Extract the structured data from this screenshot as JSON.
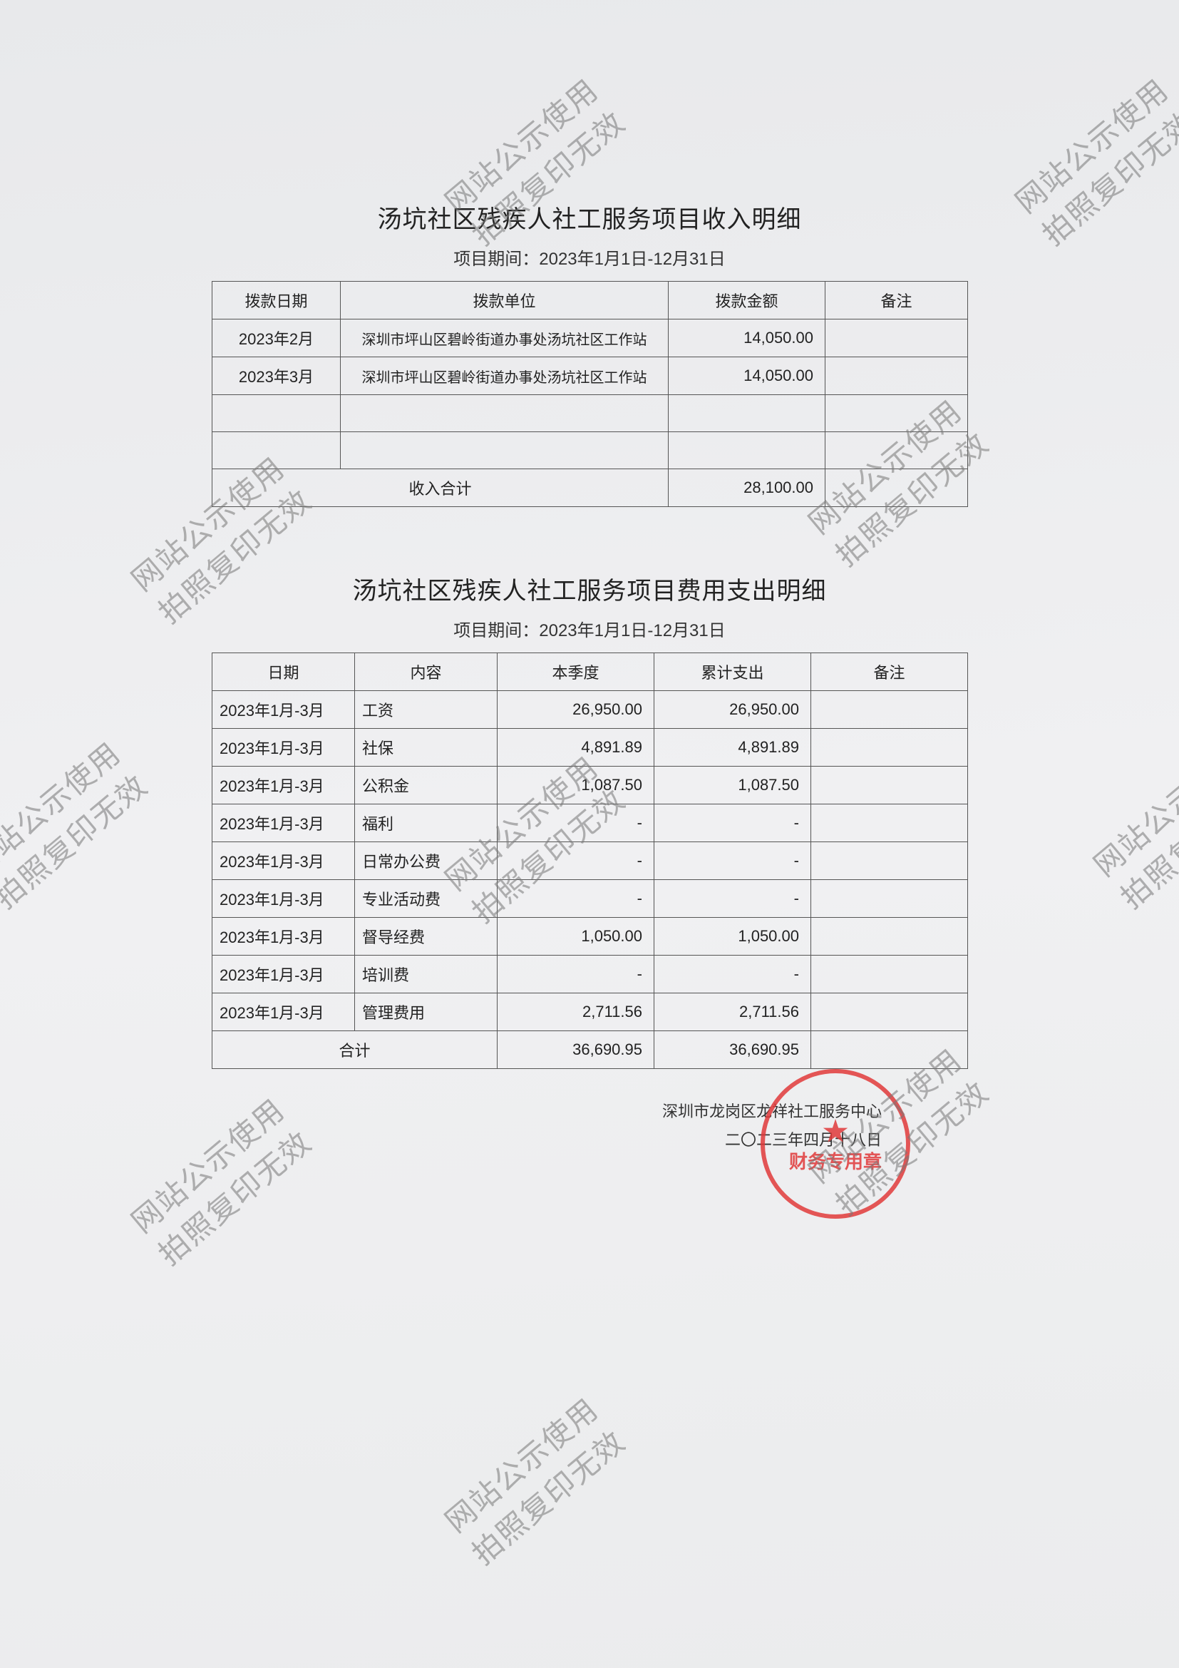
{
  "income": {
    "title": "汤坑社区残疾人社工服务项目收入明细",
    "period": "项目期间：2023年1月1日-12月31日",
    "headers": {
      "date": "拨款日期",
      "unit": "拨款单位",
      "amount": "拨款金额",
      "remark": "备注"
    },
    "rows": [
      {
        "date": "2023年2月",
        "unit": "深圳市坪山区碧岭街道办事处汤坑社区工作站",
        "amount": "14,050.00",
        "remark": ""
      },
      {
        "date": "2023年3月",
        "unit": "深圳市坪山区碧岭街道办事处汤坑社区工作站",
        "amount": "14,050.00",
        "remark": ""
      },
      {
        "date": "",
        "unit": "",
        "amount": "",
        "remark": ""
      },
      {
        "date": "",
        "unit": "",
        "amount": "",
        "remark": ""
      }
    ],
    "subtotal": {
      "label": "收入合计",
      "amount": "28,100.00",
      "remark": ""
    }
  },
  "expense": {
    "title": "汤坑社区残疾人社工服务项目费用支出明细",
    "period": "项目期间：2023年1月1日-12月31日",
    "headers": {
      "date": "日期",
      "item": "内容",
      "quarter": "本季度",
      "cum": "累计支出",
      "remark": "备注"
    },
    "rows": [
      {
        "date": "2023年1月-3月",
        "item": "工资",
        "quarter": "26,950.00",
        "cum": "26,950.00",
        "remark": ""
      },
      {
        "date": "2023年1月-3月",
        "item": "社保",
        "quarter": "4,891.89",
        "cum": "4,891.89",
        "remark": ""
      },
      {
        "date": "2023年1月-3月",
        "item": "公积金",
        "quarter": "1,087.50",
        "cum": "1,087.50",
        "remark": ""
      },
      {
        "date": "2023年1月-3月",
        "item": "福利",
        "quarter": "-",
        "cum": "-",
        "remark": ""
      },
      {
        "date": "2023年1月-3月",
        "item": "日常办公费",
        "quarter": "-",
        "cum": "-",
        "remark": ""
      },
      {
        "date": "2023年1月-3月",
        "item": "专业活动费",
        "quarter": "-",
        "cum": "-",
        "remark": ""
      },
      {
        "date": "2023年1月-3月",
        "item": "督导经费",
        "quarter": "1,050.00",
        "cum": "1,050.00",
        "remark": ""
      },
      {
        "date": "2023年1月-3月",
        "item": "培训费",
        "quarter": "-",
        "cum": "-",
        "remark": ""
      },
      {
        "date": "2023年1月-3月",
        "item": "管理费用",
        "quarter": "2,711.56",
        "cum": "2,711.56",
        "remark": ""
      }
    ],
    "total": {
      "label": "合计",
      "quarter": "36,690.95",
      "cum": "36,690.95",
      "remark": ""
    }
  },
  "footer": {
    "org": "深圳市龙岗区龙祥社工服务中心",
    "date": "二〇二三年四月十八日",
    "stamp": "财务专用章"
  },
  "watermark": {
    "line1": "网站公示使用",
    "line2": "拍照复印无效"
  },
  "colors": {
    "text": "#222222",
    "border": "#555555",
    "stamp": "#e03a3a",
    "watermark": "#777777",
    "background": "#f0f0f2"
  }
}
